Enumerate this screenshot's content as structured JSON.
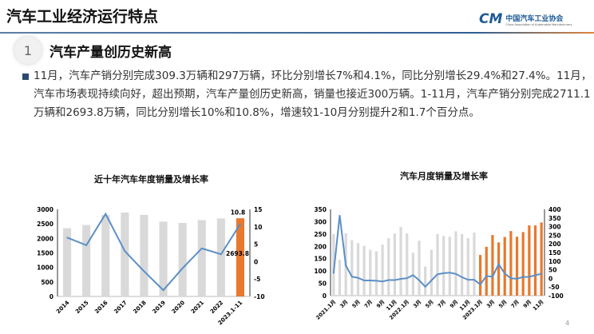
{
  "header": {
    "title": "汽车工业经济运行特点",
    "logo_mark": "CM",
    "logo_cn": "中国汽车工业协会",
    "logo_en": "China Association of Automobile Manufacturers"
  },
  "section": {
    "number": "1",
    "title": "汽车产量创历史新高"
  },
  "bullet": "11月，汽车产销分别完成309.3万辆和297万辆，环比分别增长7%和4.1%，同比分别增长29.4%和27.4%。11月，汽车市场表现持续向好，超出预期，汽车产量创历史新高，销量也接近300万辆。1-11月，汽车产销分别完成2711.1万辆和2693.8万辆，同比分别增长10%和10.8%，增速较1-10月分别提升2和1.7个百分点。",
  "page_number": "4",
  "colors": {
    "bar": "#d9d9d9",
    "highlight": "#e8792f",
    "line": "#5b8fc7"
  },
  "chart_data": [
    {
      "type": "bar+line",
      "title": "近十年汽车年度销量及增长率",
      "categories": [
        "2014",
        "2015",
        "2016",
        "2017",
        "2018",
        "2019",
        "2020",
        "2021",
        "2022",
        "2023.1-11"
      ],
      "series": [
        {
          "type": "bar",
          "axis": "left",
          "values": [
            2349,
            2460,
            2803,
            2888,
            2808,
            2577,
            2531,
            2628,
            2686,
            2693.8
          ]
        },
        {
          "type": "line",
          "axis": "right",
          "values": [
            6.9,
            4.7,
            13.7,
            3.0,
            -2.8,
            -8.2,
            -1.9,
            3.8,
            2.1,
            10.8
          ]
        }
      ],
      "highlight_index": 9,
      "data_labels": [
        "2693.8",
        "10.8"
      ],
      "ylim_left": [
        0,
        3000
      ],
      "yticks_left": [
        0,
        500,
        1000,
        1500,
        2000,
        2500,
        3000
      ],
      "ylim_right": [
        -10,
        15
      ],
      "yticks_right": [
        -10,
        -5,
        0,
        5,
        10,
        15
      ],
      "grid": false
    },
    {
      "type": "bar+line",
      "title": "汽车月度销量及增长率",
      "categories": [
        "2021.1月",
        "2月",
        "3月",
        "4月",
        "5月",
        "6月",
        "7月",
        "8月",
        "9月",
        "10月",
        "11月",
        "12月",
        "2022.1月",
        "2月",
        "3月",
        "4月",
        "5月",
        "6月",
        "7月",
        "8月",
        "9月",
        "10月",
        "11月",
        "12月",
        "2023.1月",
        "2月",
        "3月",
        "4月",
        "5月",
        "6月",
        "7月",
        "8月",
        "9月",
        "10月",
        "11月"
      ],
      "tick_labels": [
        "2021.1月",
        "3月",
        "5月",
        "7月",
        "9月",
        "11月",
        "2022.1月",
        "3月",
        "5月",
        "7月",
        "9月",
        "11月",
        "2023.1月",
        "3月",
        "5月",
        "7月",
        "9月",
        "11月"
      ],
      "series": [
        {
          "type": "bar",
          "axis": "left",
          "values": [
            250,
            145,
            253,
            225,
            213,
            202,
            186,
            180,
            207,
            233,
            252,
            279,
            253,
            174,
            223,
            118,
            186,
            250,
            242,
            239,
            261,
            250,
            233,
            256,
            165,
            198,
            246,
            216,
            238,
            262,
            239,
            258,
            285,
            285,
            297
          ]
        },
        {
          "type": "line",
          "axis": "right",
          "values": [
            30,
            365,
            75,
            10,
            3,
            -12,
            -12,
            -14,
            -18,
            -10,
            -10,
            -3,
            1,
            19,
            -11,
            -48,
            -12,
            24,
            30,
            33,
            26,
            7,
            -8,
            -8,
            -35,
            14,
            10,
            82,
            28,
            0,
            -2,
            8,
            9,
            18,
            27
          ]
        }
      ],
      "highlight_from_index": 24,
      "ylim_left": [
        0,
        350
      ],
      "yticks_left": [
        0,
        50,
        100,
        150,
        200,
        250,
        300,
        350
      ],
      "ylim_right": [
        -100,
        400
      ],
      "yticks_right": [
        -100,
        -50,
        0,
        50,
        100,
        150,
        200,
        250,
        300,
        350,
        400
      ],
      "grid": false
    }
  ]
}
